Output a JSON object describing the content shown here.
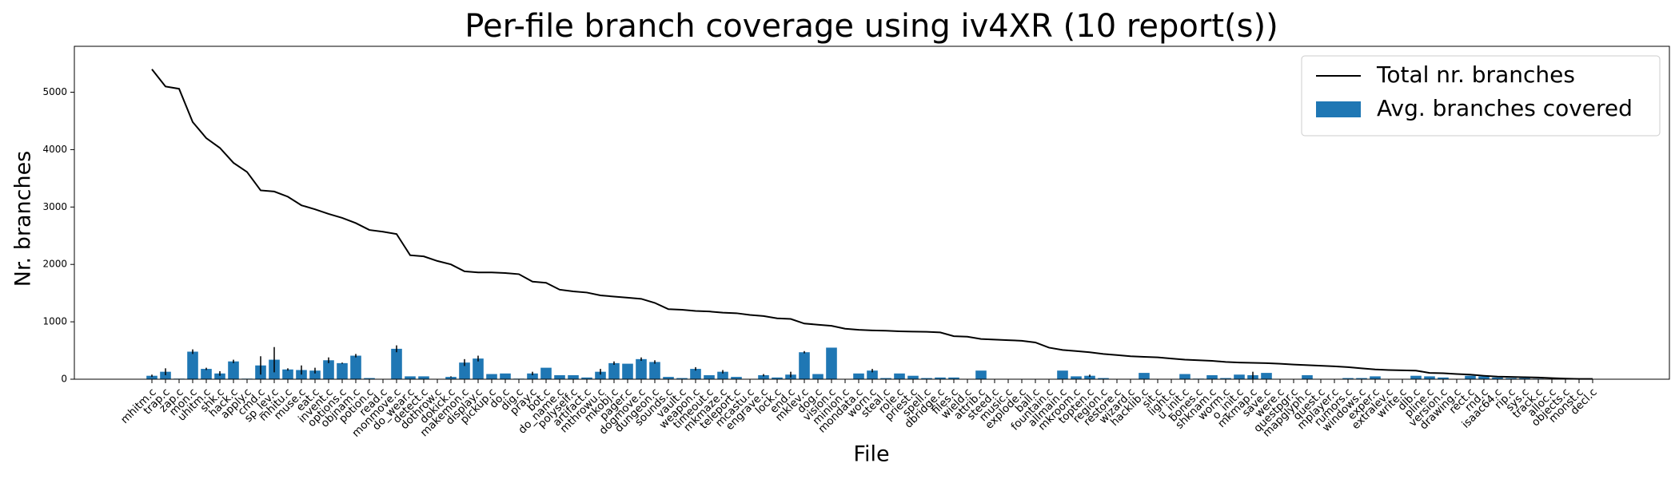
{
  "chart_data": {
    "type": "bar",
    "title": "Per-file branch coverage using iv4XR (10 report(s))",
    "x_label": "File",
    "y_label": "Nr. branches",
    "categories": [
      "mhitm.c",
      "trap.c",
      "zap.c",
      "mon.c",
      "uhitm.c",
      "shk.c",
      "hack.c",
      "apply.c",
      "cmd.c",
      "sp_lev.c",
      "mhitu.c",
      "muse.c",
      "eat.c",
      "invent.c",
      "options.c",
      "objnam.c",
      "potion.c",
      "read.c",
      "monmove.c",
      "do_wear.c",
      "detect.c",
      "dothrow.c",
      "dokick.c",
      "makemon.c",
      "display.c",
      "pickup.c",
      "do.c",
      "dig.c",
      "pray.c",
      "bot.c",
      "do_name.c",
      "polyself.c",
      "artifact.c",
      "mthrowu.c",
      "mkobj.c",
      "pager.c",
      "dogmove.c",
      "dungeon.c",
      "sounds.c",
      "vault.c",
      "weapon.c",
      "timeout.c",
      "mkmaze.c",
      "teleport.c",
      "mcastu.c",
      "engrave.c",
      "lock.c",
      "end.c",
      "mklev.c",
      "dog.c",
      "vision.c",
      "minion.c",
      "mondata.c",
      "worn.c",
      "steal.c",
      "role.c",
      "priest.c",
      "spell.c",
      "dbridge.c",
      "files.c",
      "wield.c",
      "attrib.c",
      "steed.c",
      "music.c",
      "explode.c",
      "ball.c",
      "fountain.c",
      "allmain.c",
      "mkroom.c",
      "topten.c",
      "region.c",
      "restore.c",
      "wizard.c",
      "hacklib.c",
      "sit.c",
      "light.c",
      "u_init.c",
      "bones.c",
      "shknam.c",
      "worm.c",
      "o_init.c",
      "mkmap.c",
      "save.c",
      "were.c",
      "questpgr.c",
      "mapglyph.c",
      "quest.c",
      "mplayer.c",
      "rumors.c",
      "windows.c",
      "exper.c",
      "extralev.c",
      "write.c",
      "dlb.c",
      "pline.c",
      "version.c",
      "drawing.c",
      "rect.c",
      "rnd.c",
      "isaac64.c",
      "rip.c",
      "sys.c",
      "track.c",
      "alloc.c",
      "objects.c",
      "monst.c",
      "decl.c"
    ],
    "series": [
      {
        "name": "Total nr. branches",
        "type": "line",
        "color": "#000000",
        "values": [
          5400,
          5100,
          5060,
          4480,
          4200,
          4030,
          3770,
          3610,
          3290,
          3270,
          3180,
          3030,
          2960,
          2880,
          2810,
          2720,
          2600,
          2570,
          2530,
          2160,
          2140,
          2060,
          2000,
          1880,
          1860,
          1860,
          1850,
          1830,
          1700,
          1680,
          1560,
          1530,
          1510,
          1460,
          1440,
          1420,
          1400,
          1330,
          1220,
          1210,
          1190,
          1180,
          1160,
          1150,
          1120,
          1100,
          1060,
          1050,
          970,
          950,
          930,
          880,
          860,
          850,
          845,
          835,
          830,
          825,
          815,
          750,
          740,
          700,
          690,
          680,
          670,
          640,
          550,
          510,
          490,
          470,
          440,
          420,
          400,
          390,
          380,
          360,
          340,
          330,
          320,
          300,
          290,
          285,
          280,
          270,
          255,
          245,
          235,
          225,
          210,
          190,
          170,
          160,
          155,
          150,
          110,
          105,
          90,
          80,
          60,
          45,
          40,
          35,
          30,
          20,
          10,
          5,
          5
        ]
      },
      {
        "name": "Avg. branches covered",
        "type": "bar",
        "color": "#1f77b4",
        "values": [
          60,
          130,
          10,
          480,
          180,
          100,
          310,
          10,
          240,
          340,
          170,
          160,
          150,
          330,
          280,
          410,
          20,
          5,
          530,
          50,
          50,
          5,
          40,
          290,
          360,
          90,
          100,
          10,
          100,
          200,
          70,
          70,
          30,
          130,
          280,
          270,
          350,
          300,
          40,
          20,
          180,
          70,
          130,
          40,
          5,
          70,
          30,
          80,
          470,
          90,
          550,
          5,
          100,
          150,
          20,
          100,
          60,
          20,
          30,
          30,
          5,
          150,
          5,
          5,
          5,
          5,
          5,
          150,
          50,
          60,
          20,
          5,
          5,
          110,
          5,
          5,
          90,
          10,
          70,
          20,
          80,
          70,
          110,
          5,
          5,
          70,
          5,
          5,
          20,
          20,
          50,
          5,
          5,
          60,
          50,
          30,
          5,
          60,
          50,
          30,
          20,
          20,
          10,
          5,
          5,
          5,
          5
        ],
        "errors": [
          20,
          60,
          0,
          40,
          20,
          40,
          30,
          0,
          160,
          220,
          20,
          80,
          50,
          50,
          10,
          30,
          0,
          0,
          60,
          0,
          0,
          0,
          10,
          60,
          50,
          0,
          0,
          0,
          30,
          0,
          0,
          0,
          0,
          50,
          30,
          0,
          30,
          30,
          0,
          0,
          30,
          0,
          30,
          0,
          0,
          20,
          0,
          50,
          20,
          0,
          0,
          0,
          0,
          30,
          0,
          0,
          0,
          0,
          0,
          0,
          0,
          0,
          0,
          0,
          0,
          0,
          0,
          0,
          0,
          20,
          0,
          0,
          0,
          0,
          0,
          0,
          0,
          0,
          0,
          0,
          0,
          60,
          0,
          0,
          0,
          0,
          0,
          0,
          0,
          0,
          0,
          0,
          0,
          0,
          0,
          0,
          0,
          0,
          0,
          0,
          0,
          0,
          0,
          0,
          0,
          0,
          0
        ]
      }
    ],
    "ylim": [
      0,
      5800
    ],
    "yticks": [
      0,
      1000,
      2000,
      3000,
      4000,
      5000
    ],
    "legend": "upper right"
  }
}
